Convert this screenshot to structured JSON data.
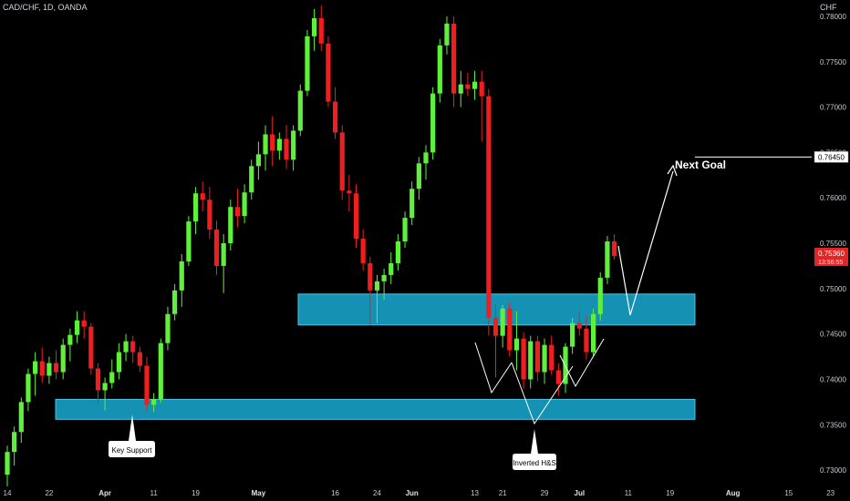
{
  "header": {
    "title": "CAD/CHF, 1D, OANDA",
    "currency": "CHF"
  },
  "colors": {
    "up": "#5ff03c",
    "down": "#f01e1e",
    "zone": "#1592b3",
    "zone_border": "#49c4e6",
    "background": "#000000"
  },
  "chart_data": {
    "type": "candlestick",
    "title": "CAD/CHF, 1D, OANDA",
    "ylim": [
      0.7266,
      0.7818
    ],
    "y_ticks": [
      "0.78000",
      "0.77500",
      "0.77000",
      "0.76500",
      "0.76000",
      "0.75500",
      "0.75000",
      "0.74500",
      "0.74000",
      "0.73500",
      "0.73000"
    ],
    "x_ticks": [
      {
        "label": "14",
        "index": 0,
        "bold": false
      },
      {
        "label": "22",
        "index": 6,
        "bold": false
      },
      {
        "label": "Apr",
        "index": 14,
        "bold": true
      },
      {
        "label": "11",
        "index": 21,
        "bold": false
      },
      {
        "label": "19",
        "index": 27,
        "bold": false
      },
      {
        "label": "May",
        "index": 36,
        "bold": true
      },
      {
        "label": "16",
        "index": 47,
        "bold": false
      },
      {
        "label": "24",
        "index": 53,
        "bold": false
      },
      {
        "label": "Jun",
        "index": 58,
        "bold": true
      },
      {
        "label": "13",
        "index": 67,
        "bold": false
      },
      {
        "label": "21",
        "index": 71,
        "bold": false
      },
      {
        "label": "29",
        "index": 77,
        "bold": false
      },
      {
        "label": "Jul",
        "index": 82,
        "bold": true
      },
      {
        "label": "11",
        "index": 89,
        "bold": false
      },
      {
        "label": "19",
        "index": 95,
        "bold": false
      },
      {
        "label": "Aug",
        "index": 104,
        "bold": true
      },
      {
        "label": "15",
        "index": 112,
        "bold": false
      },
      {
        "label": "23",
        "index": 118,
        "bold": false
      }
    ],
    "candles": [
      [
        0.7295,
        0.7327,
        0.7282,
        0.732
      ],
      [
        0.732,
        0.7348,
        0.7305,
        0.7342
      ],
      [
        0.7342,
        0.738,
        0.733,
        0.7375
      ],
      [
        0.7375,
        0.7412,
        0.7365,
        0.7406
      ],
      [
        0.7406,
        0.743,
        0.7382,
        0.742
      ],
      [
        0.742,
        0.7435,
        0.7396,
        0.7404
      ],
      [
        0.7404,
        0.7425,
        0.7395,
        0.7418
      ],
      [
        0.7418,
        0.7432,
        0.74,
        0.7408
      ],
      [
        0.7408,
        0.7445,
        0.74,
        0.7438
      ],
      [
        0.7438,
        0.7456,
        0.742,
        0.7449
      ],
      [
        0.7449,
        0.7475,
        0.744,
        0.7465
      ],
      [
        0.7465,
        0.7475,
        0.7445,
        0.7458
      ],
      [
        0.7458,
        0.7462,
        0.7405,
        0.7412
      ],
      [
        0.7412,
        0.7418,
        0.7372,
        0.7388
      ],
      [
        0.7388,
        0.7402,
        0.7366,
        0.7396
      ],
      [
        0.7396,
        0.7422,
        0.739,
        0.7408
      ],
      [
        0.7408,
        0.744,
        0.74,
        0.743
      ],
      [
        0.743,
        0.745,
        0.742,
        0.7442
      ],
      [
        0.7442,
        0.7448,
        0.7418,
        0.743
      ],
      [
        0.743,
        0.7436,
        0.7408,
        0.7415
      ],
      [
        0.7415,
        0.7425,
        0.7365,
        0.7372
      ],
      [
        0.7372,
        0.7385,
        0.7364,
        0.7378
      ],
      [
        0.7378,
        0.7445,
        0.7374,
        0.744
      ],
      [
        0.744,
        0.748,
        0.7432,
        0.7472
      ],
      [
        0.7472,
        0.7505,
        0.7465,
        0.7498
      ],
      [
        0.7498,
        0.7538,
        0.748,
        0.753
      ],
      [
        0.753,
        0.758,
        0.7525,
        0.7574
      ],
      [
        0.7574,
        0.7612,
        0.756,
        0.7605
      ],
      [
        0.7605,
        0.7618,
        0.7585,
        0.7598
      ],
      [
        0.7598,
        0.7612,
        0.7555,
        0.7565
      ],
      [
        0.7565,
        0.7575,
        0.7515,
        0.7525
      ],
      [
        0.7525,
        0.756,
        0.7495,
        0.755
      ],
      [
        0.755,
        0.7598,
        0.7542,
        0.759
      ],
      [
        0.759,
        0.761,
        0.7568,
        0.758
      ],
      [
        0.758,
        0.7615,
        0.7572,
        0.7606
      ],
      [
        0.7606,
        0.7642,
        0.7598,
        0.7635
      ],
      [
        0.7635,
        0.7662,
        0.762,
        0.7648
      ],
      [
        0.7648,
        0.768,
        0.763,
        0.767
      ],
      [
        0.767,
        0.769,
        0.7635,
        0.7652
      ],
      [
        0.7652,
        0.7672,
        0.7642,
        0.7665
      ],
      [
        0.7665,
        0.768,
        0.7632,
        0.7642
      ],
      [
        0.7642,
        0.768,
        0.763,
        0.7674
      ],
      [
        0.7674,
        0.7725,
        0.7668,
        0.7718
      ],
      [
        0.7718,
        0.7785,
        0.7712,
        0.7778
      ],
      [
        0.7778,
        0.7808,
        0.7762,
        0.7798
      ],
      [
        0.7798,
        0.7812,
        0.7762,
        0.777
      ],
      [
        0.777,
        0.7778,
        0.77,
        0.7706
      ],
      [
        0.7706,
        0.7722,
        0.7665,
        0.7672
      ],
      [
        0.7672,
        0.768,
        0.7598,
        0.7608
      ],
      [
        0.7608,
        0.7625,
        0.7585,
        0.7605
      ],
      [
        0.7605,
        0.7615,
        0.7545,
        0.7555
      ],
      [
        0.7555,
        0.7565,
        0.752,
        0.7528
      ],
      [
        0.7528,
        0.7535,
        0.746,
        0.7498
      ],
      [
        0.7498,
        0.7515,
        0.7462,
        0.7508
      ],
      [
        0.7508,
        0.7522,
        0.7488,
        0.7515
      ],
      [
        0.7515,
        0.754,
        0.7505,
        0.7528
      ],
      [
        0.7528,
        0.756,
        0.752,
        0.7552
      ],
      [
        0.7552,
        0.7585,
        0.7545,
        0.7578
      ],
      [
        0.7578,
        0.7618,
        0.757,
        0.761
      ],
      [
        0.761,
        0.7645,
        0.7598,
        0.7638
      ],
      [
        0.7638,
        0.7658,
        0.762,
        0.765
      ],
      [
        0.765,
        0.7722,
        0.7642,
        0.7715
      ],
      [
        0.7715,
        0.7775,
        0.7705,
        0.7768
      ],
      [
        0.7768,
        0.78,
        0.7758,
        0.7792
      ],
      [
        0.7792,
        0.78,
        0.77,
        0.7715
      ],
      [
        0.7715,
        0.774,
        0.77,
        0.7725
      ],
      [
        0.7725,
        0.7738,
        0.7712,
        0.772
      ],
      [
        0.772,
        0.774,
        0.7708,
        0.7728
      ],
      [
        0.7728,
        0.774,
        0.7662,
        0.7712
      ],
      [
        0.7712,
        0.772,
        0.7448,
        0.7468
      ],
      [
        0.7468,
        0.7482,
        0.7402,
        0.7448
      ],
      [
        0.7448,
        0.7482,
        0.7435,
        0.7478
      ],
      [
        0.7478,
        0.7485,
        0.7425,
        0.7432
      ],
      [
        0.7432,
        0.7475,
        0.741,
        0.7445
      ],
      [
        0.7445,
        0.7452,
        0.739,
        0.74
      ],
      [
        0.74,
        0.7448,
        0.739,
        0.7442
      ],
      [
        0.7442,
        0.7448,
        0.7398,
        0.7408
      ],
      [
        0.7408,
        0.7445,
        0.7395,
        0.7438
      ],
      [
        0.7438,
        0.7448,
        0.7405,
        0.741
      ],
      [
        0.741,
        0.7418,
        0.7382,
        0.7395
      ],
      [
        0.7395,
        0.744,
        0.7385,
        0.7436
      ],
      [
        0.7436,
        0.7468,
        0.7428,
        0.7462
      ],
      [
        0.7462,
        0.7475,
        0.7448,
        0.7456
      ],
      [
        0.7456,
        0.747,
        0.7422,
        0.743
      ],
      [
        0.743,
        0.7478,
        0.7425,
        0.7472
      ],
      [
        0.7472,
        0.7518,
        0.7465,
        0.7512
      ],
      [
        0.7512,
        0.7558,
        0.7505,
        0.7552
      ],
      [
        0.7552,
        0.756,
        0.7532,
        0.7536
      ]
    ],
    "zones": [
      {
        "from": 0.746,
        "to": 0.7494
      },
      {
        "from": 0.7356,
        "to": 0.7378
      }
    ],
    "price_marker": {
      "value": 0.7536,
      "label": "0.75360",
      "countdown": "13:56:55"
    },
    "target_marker": {
      "value": 0.7645,
      "label": "0.76450"
    },
    "annotations": {
      "next_goal": "Next Goal",
      "key_support": "Key Support",
      "inverted_hs": "Inverted H&S"
    }
  }
}
